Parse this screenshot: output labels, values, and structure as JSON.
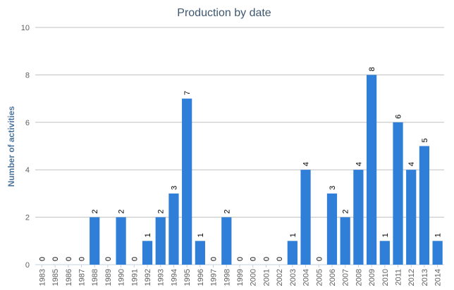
{
  "chart_data": {
    "type": "bar",
    "title": "Production by date",
    "xlabel": "",
    "ylabel": "Number of activities",
    "ylim": [
      0,
      10
    ],
    "yticks": [
      0,
      2,
      4,
      6,
      8,
      10
    ],
    "grid": true,
    "legend": "none",
    "bar_color": "#2f7ed8",
    "categories": [
      "1983",
      "1985",
      "1986",
      "1987",
      "1988",
      "1989",
      "1990",
      "1991",
      "1992",
      "1993",
      "1994",
      "1995",
      "1996",
      "1997",
      "1998",
      "1999",
      "2000",
      "2001",
      "2002",
      "2003",
      "2004",
      "2005",
      "2006",
      "2007",
      "2008",
      "2009",
      "2010",
      "2011",
      "2012",
      "2013",
      "2014"
    ],
    "values": [
      0,
      0,
      0,
      0,
      2,
      0,
      2,
      0,
      1,
      2,
      3,
      7,
      1,
      0,
      2,
      0,
      0,
      0,
      0,
      1,
      4,
      0,
      3,
      2,
      4,
      8,
      1,
      6,
      4,
      5,
      1
    ]
  }
}
